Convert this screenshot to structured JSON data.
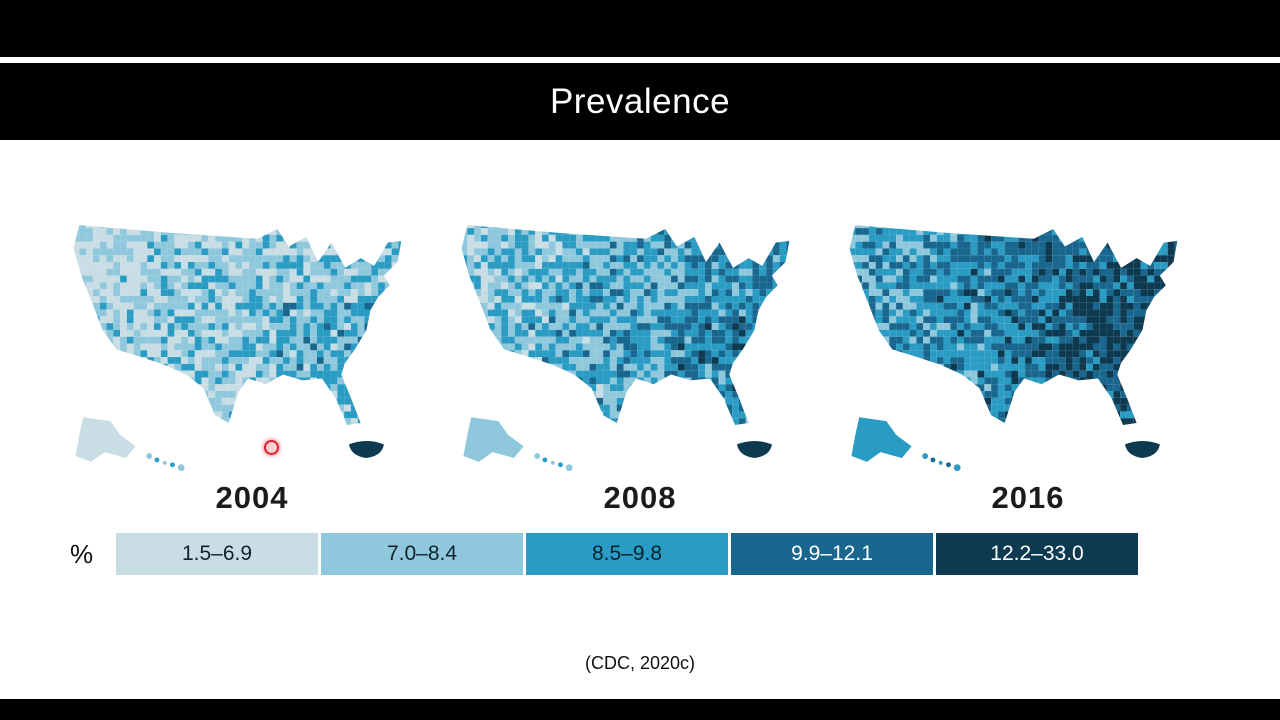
{
  "slide": {
    "title": "Prevalence",
    "citation": "(CDC, 2020c)"
  },
  "maps": [
    {
      "year": "2004"
    },
    {
      "year": "2008"
    },
    {
      "year": "2016"
    }
  ],
  "legend": {
    "unit_label": "%",
    "classes": [
      {
        "range": "1.5–6.9",
        "color": "#c9dde4",
        "text_color": "#10232c"
      },
      {
        "range": "7.0–8.4",
        "color": "#8fc8dc",
        "text_color": "#10232c"
      },
      {
        "range": "8.5–9.8",
        "color": "#2a9cc4",
        "text_color": "#06222e"
      },
      {
        "range": "9.9–12.1",
        "color": "#19678e",
        "text_color": "#ffffff"
      },
      {
        "range": "12.2–33.0",
        "color": "#0d3a50",
        "text_color": "#ffffff"
      }
    ]
  },
  "chart_data": {
    "type": "heatmap",
    "subtype": "choropleth_small_multiples",
    "title": "Prevalence",
    "unit": "%",
    "geography": "U.S. counties with Alaska, Hawaii and Puerto Rico insets",
    "years": [
      "2004",
      "2008",
      "2016"
    ],
    "bins": [
      {
        "label": "1.5–6.9",
        "min": 1.5,
        "max": 6.9,
        "color": "#c9dde4"
      },
      {
        "label": "7.0–8.4",
        "min": 7.0,
        "max": 8.4,
        "color": "#8fc8dc"
      },
      {
        "label": "8.5–9.8",
        "min": 8.5,
        "max": 9.8,
        "color": "#2a9cc4"
      },
      {
        "label": "9.9–12.1",
        "min": 9.9,
        "max": 12.1,
        "color": "#19678e"
      },
      {
        "label": "12.2–33.0",
        "min": 12.2,
        "max": 33.0,
        "color": "#0d3a50"
      }
    ],
    "legend_position": "bottom",
    "annotation": "(CDC, 2020c)",
    "trend": "County-level prevalence shifts into higher bins from 2004 to 2016, darkest in the Southeast",
    "trend_intensity_by_year": [
      0.12,
      0.33,
      0.58
    ]
  }
}
